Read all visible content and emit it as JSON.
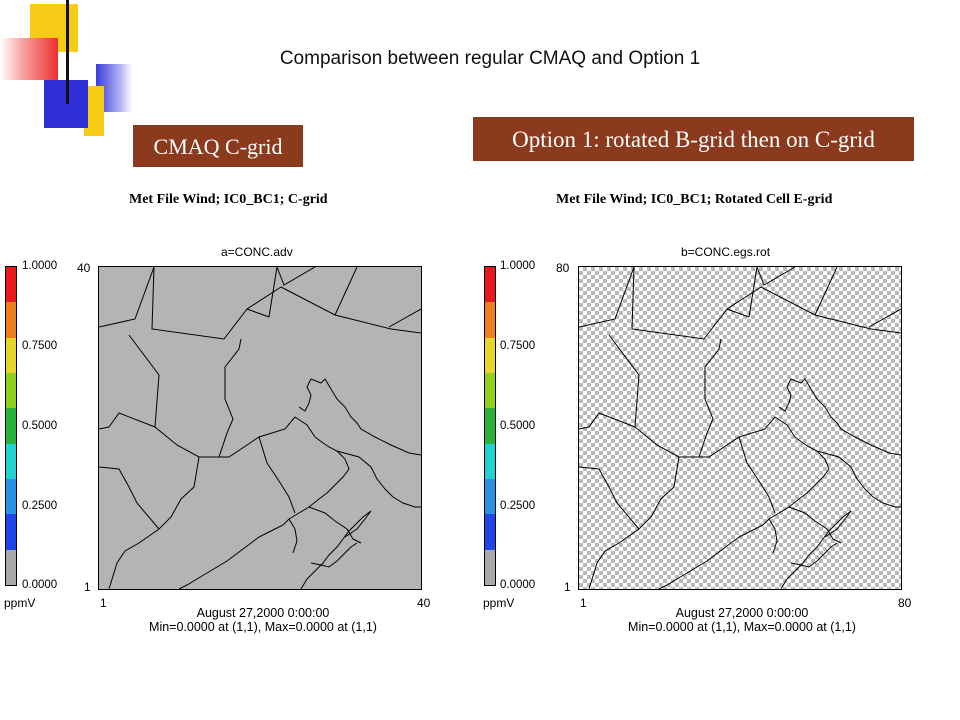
{
  "slide": {
    "title": "Comparison between regular CMAQ and Option 1",
    "left_label": "CMAQ C-grid",
    "right_label": "Option 1: rotated B-grid then on C-grid"
  },
  "panels": [
    {
      "title": "Met File Wind; IC0_BC1; C-grid",
      "subtitle": "a=CONC.adv",
      "x_min_label": "1",
      "x_max_label": "40",
      "y_min_label": "1",
      "y_max_label": "40",
      "footer_date": "August 27,2000 0:00:00",
      "footer_stats": "Min=0.0000 at (1,1), Max=0.0000 at (1,1)",
      "fill": "gray"
    },
    {
      "title": "Met File Wind; IC0_BC1; Rotated Cell E-grid",
      "subtitle": "b=CONC.egs.rot",
      "x_min_label": "1",
      "x_max_label": "80",
      "y_min_label": "1",
      "y_max_label": "80",
      "footer_date": "August 27,2000 0:00:00",
      "footer_stats": "Min=0.0000 at (1,1), Max=0.0000 at (1,1)",
      "fill": "checkerboard"
    }
  ],
  "colorbar": {
    "unit": "ppmV",
    "ticks": [
      "1.0000",
      "0.7500",
      "0.5000",
      "0.2500",
      "0.0000"
    ],
    "colors": [
      "#e8191e",
      "#f07e1e",
      "#e6d52a",
      "#8fd11e",
      "#28b43c",
      "#20d2d2",
      "#2a92e6",
      "#1e46e6",
      "#a9a9a9"
    ]
  }
}
